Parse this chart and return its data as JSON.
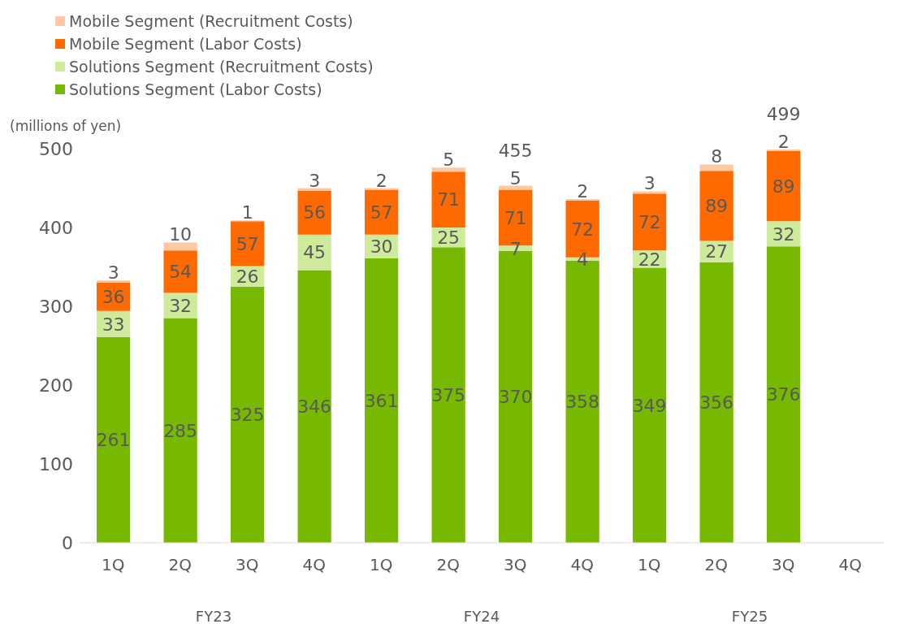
{
  "chart_data": {
    "type": "bar",
    "stacked": true,
    "ylabel": "(millions of yen)",
    "categories": [
      "1Q",
      "2Q",
      "3Q",
      "4Q",
      "1Q",
      "2Q",
      "3Q",
      "4Q",
      "1Q",
      "2Q",
      "3Q",
      "4Q"
    ],
    "series": [
      {
        "name": "Solutions Segment (Labor Costs)",
        "color": "#76b900",
        "values": [
          261,
          285,
          325,
          346,
          361,
          375,
          370,
          358,
          349,
          356,
          376,
          null
        ]
      },
      {
        "name": "Solutions Segment (Recruitment Costs)",
        "color": "#cdeb9a",
        "values": [
          33,
          32,
          26,
          45,
          30,
          25,
          7,
          4,
          22,
          27,
          32,
          null
        ]
      },
      {
        "name": "Mobile Segment (Labor Costs)",
        "color": "#ff6a00",
        "values": [
          36,
          54,
          57,
          56,
          57,
          71,
          71,
          72,
          72,
          89,
          89,
          null
        ]
      },
      {
        "name": "Mobile Segment (Recruitment Costs)",
        "color": "#ffc9a6",
        "values": [
          3,
          10,
          1,
          3,
          2,
          5,
          5,
          2,
          3,
          8,
          2,
          null
        ]
      }
    ],
    "totals": [
      null,
      null,
      null,
      null,
      null,
      null,
      "455",
      null,
      null,
      null,
      "499",
      null
    ],
    "annotations": [
      "FY23",
      "FY24",
      "FY25"
    ],
    "ylim": [
      0,
      500
    ],
    "yticks": [
      0,
      100,
      200,
      300,
      400,
      500
    ],
    "data_labels": true,
    "legend": "top left",
    "grid": false
  }
}
